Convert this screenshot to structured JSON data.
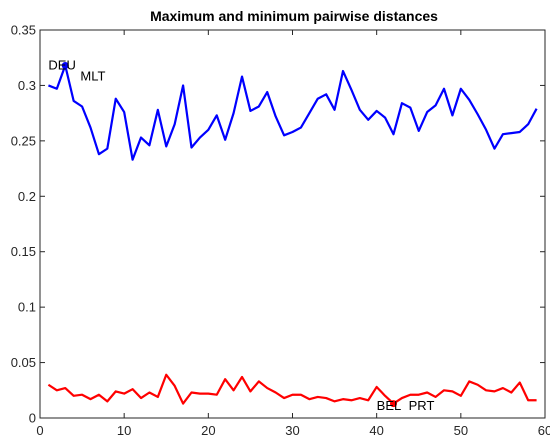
{
  "chart_data": {
    "type": "line",
    "title": "Maximum and minimum pairwise distances",
    "xlabel": "",
    "ylabel": "",
    "xlim": [
      0,
      60
    ],
    "ylim": [
      0,
      0.35
    ],
    "xticks": [
      0,
      10,
      20,
      30,
      40,
      50,
      60
    ],
    "xtick_labels": [
      "0",
      "10",
      "20",
      "30",
      "40",
      "50",
      "60"
    ],
    "yticks": [
      0,
      0.05,
      0.1,
      0.15,
      0.2,
      0.25,
      0.3,
      0.35
    ],
    "ytick_labels": [
      "0",
      "0.05",
      "0.1",
      "0.15",
      "0.2",
      "0.25",
      "0.3",
      "0.35"
    ],
    "grid": false,
    "series": [
      {
        "color": "#0000ff",
        "x": [
          1,
          2,
          3,
          4,
          5,
          6,
          7,
          8,
          9,
          10,
          11,
          12,
          13,
          14,
          15,
          16,
          17,
          18,
          19,
          20,
          21,
          22,
          23,
          24,
          25,
          26,
          27,
          28,
          29,
          30,
          31,
          32,
          33,
          34,
          35,
          36,
          37,
          38,
          39,
          40,
          41,
          42,
          43,
          44,
          45,
          46,
          47,
          48,
          49,
          50,
          51,
          52,
          53,
          54,
          55,
          56,
          57,
          58,
          59
        ],
        "values": [
          0.3,
          0.297,
          0.318,
          0.286,
          0.281,
          0.262,
          0.238,
          0.243,
          0.288,
          0.276,
          0.233,
          0.253,
          0.246,
          0.278,
          0.245,
          0.265,
          0.3,
          0.244,
          0.253,
          0.26,
          0.273,
          0.251,
          0.275,
          0.308,
          0.277,
          0.281,
          0.294,
          0.272,
          0.255,
          0.258,
          0.262,
          0.275,
          0.288,
          0.292,
          0.278,
          0.313,
          0.296,
          0.278,
          0.269,
          0.277,
          0.271,
          0.256,
          0.284,
          0.28,
          0.259,
          0.276,
          0.282,
          0.297,
          0.273,
          0.297,
          0.287,
          0.274,
          0.26,
          0.243,
          0.256,
          0.257,
          0.258,
          0.265,
          0.279
        ]
      },
      {
        "color": "#ff0000",
        "x": [
          1,
          2,
          3,
          4,
          5,
          6,
          7,
          8,
          9,
          10,
          11,
          12,
          13,
          14,
          15,
          16,
          17,
          18,
          19,
          20,
          21,
          22,
          23,
          24,
          25,
          26,
          27,
          28,
          29,
          30,
          31,
          32,
          33,
          34,
          35,
          36,
          37,
          38,
          39,
          40,
          41,
          42,
          43,
          44,
          45,
          46,
          47,
          48,
          49,
          50,
          51,
          52,
          53,
          54,
          55,
          56,
          57,
          58,
          59
        ],
        "values": [
          0.03,
          0.025,
          0.027,
          0.02,
          0.021,
          0.017,
          0.021,
          0.015,
          0.024,
          0.022,
          0.026,
          0.018,
          0.023,
          0.019,
          0.039,
          0.029,
          0.013,
          0.023,
          0.022,
          0.022,
          0.021,
          0.035,
          0.025,
          0.037,
          0.024,
          0.033,
          0.027,
          0.023,
          0.018,
          0.021,
          0.021,
          0.017,
          0.019,
          0.018,
          0.015,
          0.017,
          0.016,
          0.018,
          0.016,
          0.028,
          0.02,
          0.013,
          0.018,
          0.021,
          0.021,
          0.023,
          0.019,
          0.025,
          0.024,
          0.02,
          0.033,
          0.03,
          0.025,
          0.024,
          0.027,
          0.023,
          0.032,
          0.016,
          0.016
        ]
      }
    ],
    "markers": [
      {
        "x": 3,
        "y": 0.318,
        "color": "#0000ff"
      },
      {
        "x": 42,
        "y": 0.013,
        "color": "#ff0000"
      }
    ],
    "annotations": [
      {
        "text": "DEU",
        "x": 1.0,
        "y": 0.318
      },
      {
        "text": "MLT",
        "x": 4.8,
        "y": 0.308
      },
      {
        "text": "BEL",
        "x": 40.0,
        "y": 0.011
      },
      {
        "text": "PRT",
        "x": 43.8,
        "y": 0.011
      }
    ]
  }
}
